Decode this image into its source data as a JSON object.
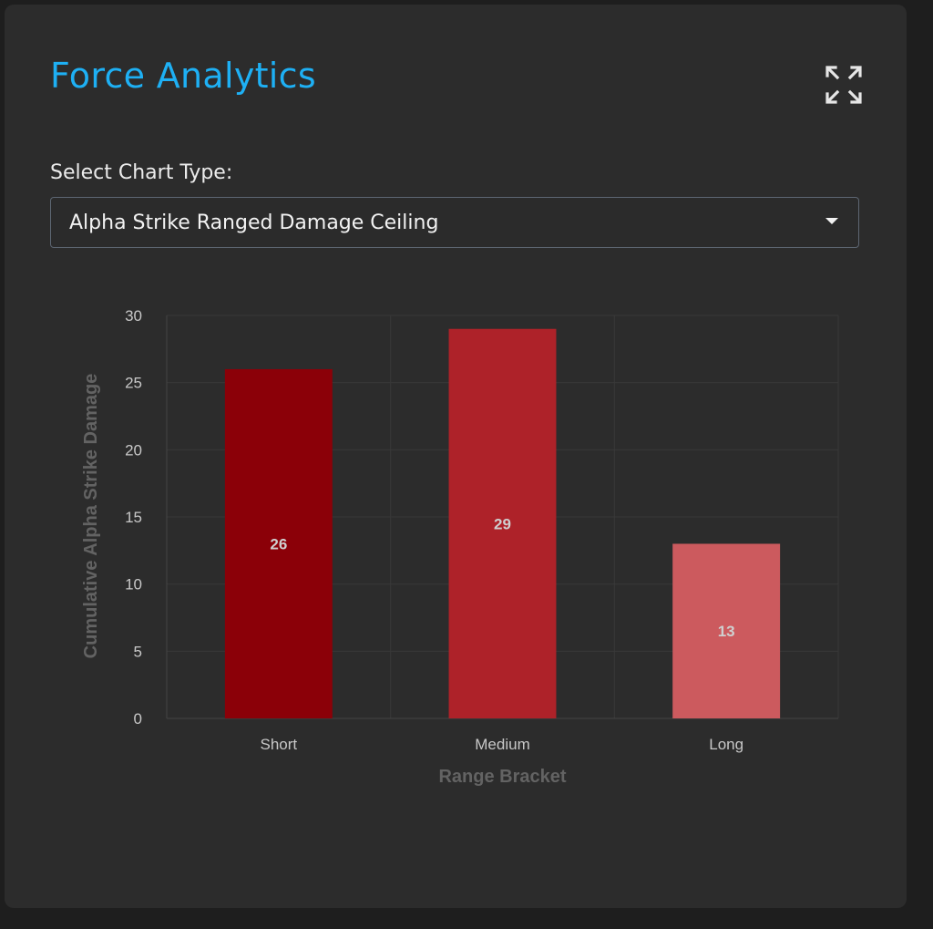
{
  "panel": {
    "title": "Force Analytics",
    "expand_icon": "expand-arrows-icon"
  },
  "selector": {
    "label": "Select Chart Type:",
    "value": "Alpha Strike Ranged Damage Ceiling",
    "caret_icon": "caret-down-icon"
  },
  "chart_data": {
    "type": "bar",
    "categories": [
      "Short",
      "Medium",
      "Long"
    ],
    "values": [
      26,
      29,
      13
    ],
    "colors": [
      "#8b0008",
      "#ae2229",
      "#cc5a5e"
    ],
    "xlabel": "Range Bracket",
    "ylabel": "Cumulative Alpha Strike Damage",
    "ylim": [
      0,
      30
    ],
    "yticks": [
      0,
      5,
      10,
      15,
      20,
      25,
      30
    ],
    "grid": true,
    "data_labels": true
  }
}
